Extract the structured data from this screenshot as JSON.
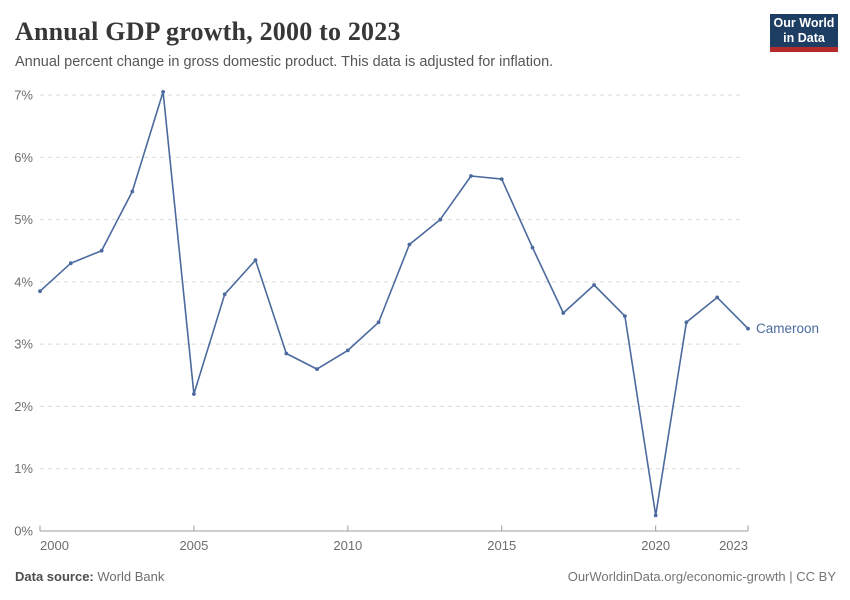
{
  "header": {
    "title": "Annual GDP growth, 2000 to 2023",
    "subtitle": "Annual percent change in gross domestic product. This data is adjusted for inflation.",
    "logo_line1": "Our World",
    "logo_line2": "in Data"
  },
  "footer": {
    "source_label": "Data source:",
    "source_value": "World Bank",
    "credit": "OurWorldinData.org/economic-growth | CC BY"
  },
  "colors": {
    "series": "#4c6a9e",
    "grid": "#d9d9d9",
    "axis": "#9e9e9e",
    "axis_text": "#6e6e6e",
    "title_text": "#383636",
    "subtitle_text": "#565656",
    "logo_bg": "#1d3d63",
    "logo_accent": "#b5292a"
  },
  "chart_data": {
    "type": "line",
    "title": "Annual GDP growth, 2000 to 2023",
    "xlabel": "",
    "ylabel": "",
    "xlim": [
      2000,
      2023
    ],
    "ylim": [
      0,
      7
    ],
    "y_tick_step": 1,
    "y_tick_suffix": "%",
    "x_ticks": [
      2000,
      2005,
      2010,
      2015,
      2020,
      2023
    ],
    "grid": "horizontal-dashed",
    "legend_position": "end-of-line-label",
    "x": [
      2000,
      2001,
      2002,
      2003,
      2004,
      2005,
      2006,
      2007,
      2008,
      2009,
      2010,
      2011,
      2012,
      2013,
      2014,
      2015,
      2016,
      2017,
      2018,
      2019,
      2020,
      2021,
      2022,
      2023
    ],
    "series": [
      {
        "name": "Cameroon",
        "color": "#4c6a9e",
        "values": [
          3.85,
          4.3,
          4.5,
          5.45,
          7.05,
          2.2,
          3.8,
          4.35,
          2.85,
          2.6,
          2.9,
          3.35,
          4.6,
          5.0,
          5.7,
          5.65,
          4.55,
          3.5,
          3.95,
          3.45,
          0.25,
          3.35,
          3.75,
          3.25
        ]
      }
    ]
  }
}
